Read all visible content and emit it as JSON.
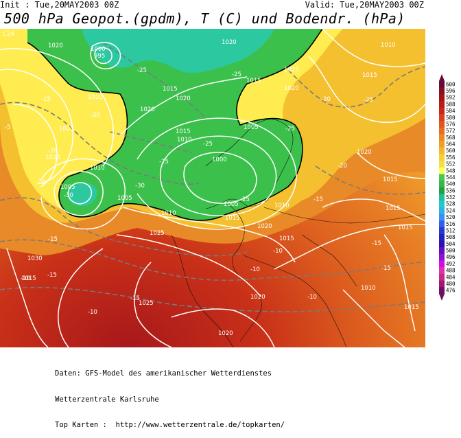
{
  "header": {
    "init": "Init : Tue,20MAY2003 00Z",
    "valid": "Valid: Tue,20MAY2003 00Z",
    "title": "500 hPa Geopot.(gpdm), T (C) und Bodendr. (hPa)"
  },
  "colorbar": {
    "labels": [
      "600",
      "596",
      "592",
      "588",
      "584",
      "580",
      "576",
      "572",
      "568",
      "564",
      "560",
      "556",
      "552",
      "548",
      "544",
      "540",
      "536",
      "532",
      "528",
      "524",
      "520",
      "516",
      "512",
      "508",
      "504",
      "500",
      "496",
      "492",
      "488",
      "484",
      "480",
      "476"
    ],
    "colors": [
      "#6a0a3a",
      "#8a0f1e",
      "#a01414",
      "#b81c16",
      "#c8281a",
      "#d8401c",
      "#e0561e",
      "#e66e22",
      "#ec8826",
      "#f0a02a",
      "#f4b82e",
      "#f8d034",
      "#f2e040",
      "#ffff55",
      "#48c850",
      "#30b848",
      "#20a040",
      "#18c0a0",
      "#20c8d0",
      "#30b0e8",
      "#3890f0",
      "#3060e8",
      "#2838d0",
      "#2020c0",
      "#3010b0",
      "#6010c0",
      "#9010d0",
      "#d010e0",
      "#e030b0",
      "#c82880",
      "#a01870",
      "#701060"
    ]
  },
  "map": {
    "labels": [
      {
        "t": "C24",
        "c": "lbl-c24"
      },
      {
        "t": "1020",
        "c": "lbl-1020a"
      },
      {
        "t": "1000",
        "c": "lbl-1000"
      },
      {
        "t": "995",
        "c": "lbl-995"
      },
      {
        "t": "1020",
        "c": "lbl-1020b"
      },
      {
        "t": "1010",
        "c": "lbl-1010a"
      },
      {
        "t": "1025",
        "c": "lbl-1025a"
      },
      {
        "t": "1015",
        "c": "lbl-1015a"
      },
      {
        "t": "1020",
        "c": "lbl-1020c"
      },
      {
        "t": "1015",
        "c": "lbl-1015b"
      },
      {
        "t": "-15",
        "c": "lbl-m15a"
      },
      {
        "t": "1010",
        "c": "lbl-1010b"
      },
      {
        "t": "1015",
        "c": "lbl-1015c"
      },
      {
        "t": "1020",
        "c": "lbl-1020d"
      },
      {
        "t": "1020",
        "c": "lbl-1020e"
      },
      {
        "t": "-25",
        "c": "lbl-m25a"
      },
      {
        "t": "-25",
        "c": "lbl-m25b"
      },
      {
        "t": "-20",
        "c": "lbl-m20a"
      },
      {
        "t": "1025",
        "c": "lbl-1025b"
      },
      {
        "t": "1015",
        "c": "lbl-1015d"
      },
      {
        "t": "1010",
        "c": "lbl-1010c"
      },
      {
        "t": "-25",
        "c": "lbl-m25c"
      },
      {
        "t": "1005",
        "c": "lbl-1005a"
      },
      {
        "t": "-20",
        "c": "lbl-m20b"
      },
      {
        "t": "1020",
        "c": "lbl-1020f"
      },
      {
        "t": "1010",
        "c": "lbl-1010d"
      },
      {
        "t": "-25",
        "c": "lbl-m25d"
      },
      {
        "t": "1000",
        "c": "lbl-1000b"
      },
      {
        "t": "-25",
        "c": "lbl-m25e"
      },
      {
        "t": "-30",
        "c": "lbl-m30"
      },
      {
        "t": "1005",
        "c": "lbl-1005b"
      },
      {
        "t": "1005",
        "c": "lbl-1005c"
      },
      {
        "t": "-30",
        "c": "lbl-m30b"
      },
      {
        "t": "1010",
        "c": "lbl-1010e"
      },
      {
        "t": "-25",
        "c": "lbl-m25f"
      },
      {
        "t": "-20",
        "c": "lbl-m20c"
      },
      {
        "t": "1025",
        "c": "lbl-1025c"
      },
      {
        "t": "1015",
        "c": "lbl-1015e"
      },
      {
        "t": "1020",
        "c": "lbl-1020g"
      },
      {
        "t": "1005",
        "c": "lbl-1005d"
      },
      {
        "t": "1010",
        "c": "lbl-1010f"
      },
      {
        "t": "-20",
        "c": "lbl-m20d"
      },
      {
        "t": "-15",
        "c": "lbl-m15b"
      },
      {
        "t": "1015",
        "c": "lbl-1015f"
      },
      {
        "t": "1015",
        "c": "lbl-1015g"
      },
      {
        "t": "-15",
        "c": "lbl-m15c"
      },
      {
        "t": "1030",
        "c": "lbl-1030"
      },
      {
        "t": "-15",
        "c": "lbl-m15d"
      },
      {
        "t": "-10",
        "c": "lbl-m10a"
      },
      {
        "t": "-10",
        "c": "lbl-m10b"
      },
      {
        "t": "1025",
        "c": "lbl-1025d"
      },
      {
        "t": "-15",
        "c": "lbl-m15e"
      },
      {
        "t": "-10",
        "c": "lbl-m10c"
      },
      {
        "t": "1020",
        "c": "lbl-1020h"
      },
      {
        "t": "-15",
        "c": "lbl-m15f"
      },
      {
        "t": "1020",
        "c": "lbl-1020i"
      },
      {
        "t": "-10",
        "c": "lbl-m10d"
      },
      {
        "t": "1015",
        "c": "lbl-1015h"
      },
      {
        "t": "-15",
        "c": "lbl-m15g"
      },
      {
        "t": "-10",
        "c": "lbl-m10e"
      },
      {
        "t": "1015",
        "c": "lbl-1015i"
      },
      {
        "t": "1020",
        "c": "lbl-1020j"
      },
      {
        "t": "1015",
        "c": "lbl-1015j"
      },
      {
        "t": "1015",
        "c": "lbl-1015k"
      },
      {
        "t": "-25",
        "c": "lbl-m25g"
      },
      {
        "t": "-20",
        "c": "lbl-m20e"
      },
      {
        "t": "1010",
        "c": "lbl-1010g"
      },
      {
        "t": "-5",
        "c": "lbl-m5"
      }
    ]
  },
  "footer": {
    "line1": "Daten: GFS-Model des amerikanischer Wetterdienstes",
    "line2": "Wetterzentrale Karlsruhe",
    "line3": "Top Karten :  http://www.wetterzentrale.de/topkarten/"
  }
}
